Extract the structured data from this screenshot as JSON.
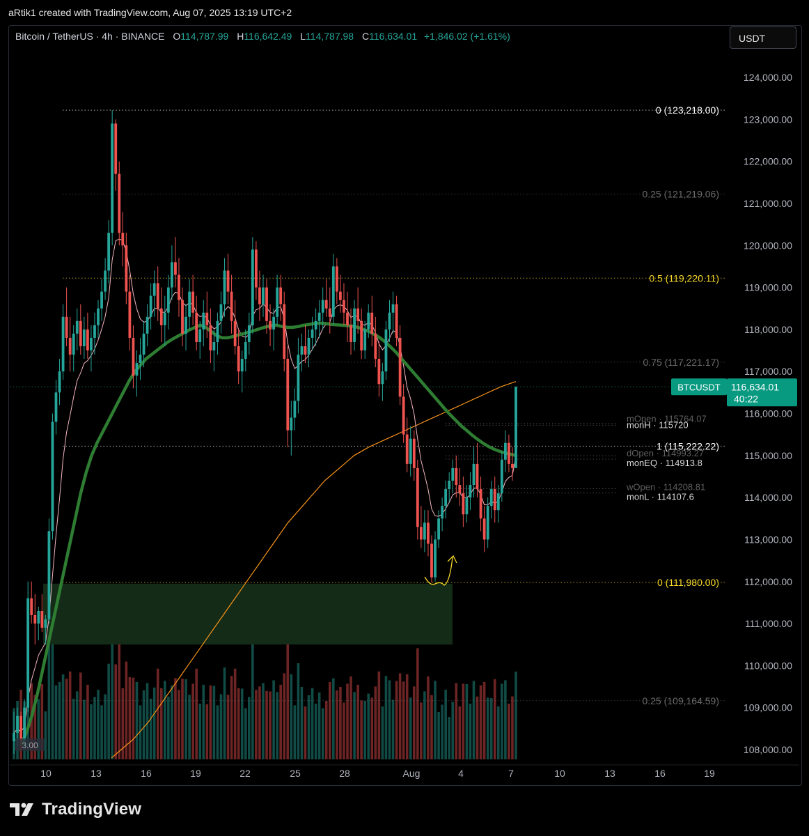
{
  "attribution": "aRtik1 created with TradingView.com, Aug 07, 2025 13:19 UTC+2",
  "header": {
    "symbol": "Bitcoin / TetherUS · 4h · BINANCE",
    "o_label": "O",
    "o_value": "114,787.99",
    "h_label": "H",
    "h_value": "116,642.49",
    "l_label": "L",
    "l_value": "114,787.98",
    "c_label": "C",
    "c_value": "116,634.01",
    "change": "+1,846.02 (+1.61%)"
  },
  "unit_button": "USDT",
  "brand": "TradingView",
  "colors": {
    "up": "#26a69a",
    "down": "#ef5350",
    "accent": "#089981",
    "fib_yellow": "#f5d72a",
    "ema_green": "#2e7d32",
    "ema_orange": "#f7931a"
  },
  "chart_data": {
    "type": "candlestick",
    "title": "Bitcoin / TetherUS · 4h · BINANCE",
    "ylim": [
      107800,
      124800
    ],
    "y_ticks": [
      "124,000.00",
      "123,000.00",
      "122,000.00",
      "121,000.00",
      "120,000.00",
      "119,000.00",
      "118,000.00",
      "117,000.00",
      "116,000.00",
      "115,000.00",
      "114,000.00",
      "113,000.00",
      "112,000.00",
      "111,000.00",
      "110,000.00",
      "109,000.00",
      "108,000.00"
    ],
    "x_ticks": [
      "10",
      "13",
      "16",
      "19",
      "22",
      "25",
      "28",
      "Aug",
      "4",
      "7",
      "10",
      "13",
      "16",
      "19"
    ],
    "last_price": {
      "label": "BTCUSDT",
      "value": "116,634.01",
      "countdown": "40:22"
    },
    "fib_levels": [
      {
        "label": "0 (123,218.00)",
        "value": 123218,
        "color": "#ffffff"
      },
      {
        "label": "0.25 (121,219.06)",
        "value": 121219.06,
        "color": "#6b6b6b"
      },
      {
        "label": "0.5 (119,220.11)",
        "value": 119220.11,
        "color": "#f5d72a"
      },
      {
        "label": "0.75 (117,221.17)",
        "value": 117221.17,
        "color": "#6b6b6b"
      },
      {
        "label": "1 (115,222.22)",
        "value": 115222.22,
        "color": "#ffffff"
      },
      {
        "label": "0 (111,980.00)",
        "value": 111980,
        "color": "#f5d72a"
      },
      {
        "label": "0.25 (109,164.59)",
        "value": 109164.59,
        "color": "#6b6b6b"
      }
    ],
    "levels": [
      {
        "label": "monH · 115720",
        "value": 115720
      },
      {
        "label": "mOpen · 115764.07",
        "value": 115764.07
      },
      {
        "label": "dOpen · 114993.27",
        "value": 114993.27
      },
      {
        "label": "monEQ · 114913.8",
        "value": 114913.8
      },
      {
        "label": "wOpen · 114208.81",
        "value": 114208.81
      },
      {
        "label": "monL · 114107.6",
        "value": 114107.6
      }
    ],
    "demand_zone": {
      "from_price": 110500,
      "to_price": 111950,
      "start_tick": "10",
      "end_date": "Aug 3"
    },
    "volume_label": "3.00",
    "ohlc": [
      [
        108200,
        108900,
        107900,
        108400
      ],
      [
        108400,
        109000,
        108100,
        108800
      ],
      [
        108800,
        108900,
        108000,
        108200
      ],
      [
        108200,
        109200,
        108100,
        109000
      ],
      [
        109000,
        112000,
        108900,
        111600
      ],
      [
        111600,
        112000,
        111000,
        111200
      ],
      [
        111200,
        111700,
        110500,
        111000
      ],
      [
        111000,
        111400,
        110600,
        111300
      ],
      [
        111300,
        111700,
        110800,
        110900
      ],
      [
        110900,
        111200,
        110500,
        111100
      ],
      [
        111100,
        113500,
        111000,
        113200
      ],
      [
        113200,
        116000,
        113000,
        115800
      ],
      [
        115800,
        116800,
        115500,
        116500
      ],
      [
        116500,
        117300,
        116200,
        117000
      ],
      [
        117000,
        118600,
        116800,
        118300
      ],
      [
        118300,
        119000,
        117600,
        117800
      ],
      [
        117800,
        118300,
        117000,
        117400
      ],
      [
        117400,
        118100,
        117000,
        117900
      ],
      [
        117900,
        118500,
        117500,
        118200
      ],
      [
        118200,
        118600,
        117400,
        117600
      ],
      [
        117600,
        118300,
        117300,
        118000
      ],
      [
        118000,
        118400,
        117300,
        117500
      ],
      [
        117500,
        118100,
        117000,
        117800
      ],
      [
        117800,
        118400,
        117400,
        118100
      ],
      [
        118100,
        118700,
        117800,
        118500
      ],
      [
        118500,
        119200,
        118200,
        118900
      ],
      [
        118900,
        119700,
        118700,
        119400
      ],
      [
        119400,
        120600,
        119100,
        120300
      ],
      [
        120300,
        123218,
        120000,
        122900
      ],
      [
        122900,
        123000,
        121300,
        121700
      ],
      [
        121700,
        122000,
        120000,
        120300
      ],
      [
        120300,
        120800,
        119500,
        120000
      ],
      [
        120000,
        120300,
        118600,
        118900
      ],
      [
        118900,
        119300,
        117500,
        117800
      ],
      [
        117800,
        118100,
        116600,
        116900
      ],
      [
        116900,
        117500,
        116400,
        117200
      ],
      [
        117200,
        117800,
        116800,
        117400
      ],
      [
        117400,
        118200,
        117100,
        117900
      ],
      [
        117900,
        118600,
        117600,
        118300
      ],
      [
        118300,
        119100,
        118000,
        118800
      ],
      [
        118800,
        119400,
        118300,
        119100
      ],
      [
        119100,
        119500,
        118200,
        118500
      ],
      [
        118500,
        119000,
        117700,
        118100
      ],
      [
        118100,
        118800,
        117600,
        118400
      ],
      [
        118400,
        119300,
        118000,
        119000
      ],
      [
        119000,
        120000,
        118700,
        119600
      ],
      [
        119600,
        120200,
        119000,
        119300
      ],
      [
        119300,
        119700,
        118300,
        118700
      ],
      [
        118700,
        119000,
        117600,
        117900
      ],
      [
        117900,
        118600,
        117500,
        118300
      ],
      [
        118300,
        119200,
        118000,
        118900
      ],
      [
        118900,
        119300,
        118100,
        118400
      ],
      [
        118400,
        118800,
        117500,
        117700
      ],
      [
        117700,
        118200,
        117300,
        118000
      ],
      [
        118000,
        118700,
        117600,
        118400
      ],
      [
        118400,
        118900,
        117800,
        118100
      ],
      [
        118100,
        118500,
        117200,
        117500
      ],
      [
        117500,
        118000,
        117000,
        117700
      ],
      [
        117700,
        118400,
        117400,
        118200
      ],
      [
        118200,
        118900,
        117900,
        118600
      ],
      [
        118600,
        119700,
        118300,
        119400
      ],
      [
        119400,
        119800,
        118600,
        118900
      ],
      [
        118900,
        119300,
        117900,
        118200
      ],
      [
        118200,
        118700,
        117400,
        117600
      ],
      [
        117600,
        118000,
        116700,
        117000
      ],
      [
        117000,
        117500,
        116500,
        117300
      ],
      [
        117300,
        118000,
        117000,
        117700
      ],
      [
        117700,
        118400,
        117400,
        118100
      ],
      [
        118100,
        120200,
        117900,
        119900
      ],
      [
        119900,
        120100,
        118700,
        119000
      ],
      [
        119000,
        119400,
        118200,
        118600
      ],
      [
        118600,
        119300,
        118300,
        119000
      ],
      [
        119000,
        119200,
        117900,
        118200
      ],
      [
        118200,
        118600,
        117600,
        118000
      ],
      [
        118000,
        118500,
        117500,
        118300
      ],
      [
        118300,
        119300,
        118100,
        119000
      ],
      [
        119000,
        119300,
        118200,
        118600
      ],
      [
        118600,
        118900,
        117000,
        117300
      ],
      [
        117300,
        117600,
        115200,
        115600
      ],
      [
        115600,
        116300,
        115000,
        115900
      ],
      [
        115900,
        116600,
        115600,
        116300
      ],
      [
        116300,
        117800,
        116000,
        117400
      ],
      [
        117400,
        117900,
        117000,
        117600
      ],
      [
        117600,
        118100,
        117200,
        117400
      ],
      [
        117400,
        118000,
        117100,
        117800
      ],
      [
        117800,
        118300,
        117500,
        118000
      ],
      [
        118000,
        118500,
        117600,
        118200
      ],
      [
        118200,
        118700,
        117800,
        118400
      ],
      [
        118400,
        119000,
        118000,
        118700
      ],
      [
        118700,
        119200,
        118300,
        118500
      ],
      [
        118500,
        119000,
        117900,
        118300
      ],
      [
        118300,
        119800,
        118100,
        119500
      ],
      [
        119500,
        119700,
        118600,
        118900
      ],
      [
        118900,
        119300,
        118400,
        118700
      ],
      [
        118700,
        119100,
        118100,
        118400
      ],
      [
        118400,
        118900,
        117700,
        118100
      ],
      [
        118100,
        118500,
        117400,
        117700
      ],
      [
        117700,
        118700,
        117500,
        118500
      ],
      [
        118500,
        119000,
        117900,
        118200
      ],
      [
        118200,
        118500,
        117300,
        117500
      ],
      [
        117500,
        118200,
        117300,
        118000
      ],
      [
        118000,
        118600,
        117800,
        118400
      ],
      [
        118400,
        118800,
        117600,
        117900
      ],
      [
        117900,
        118300,
        117100,
        117300
      ],
      [
        117300,
        117700,
        116400,
        116700
      ],
      [
        116700,
        117200,
        116300,
        117000
      ],
      [
        117000,
        118200,
        116800,
        118000
      ],
      [
        118000,
        118700,
        117700,
        118400
      ],
      [
        118400,
        118900,
        117900,
        118600
      ],
      [
        118600,
        118800,
        117600,
        117800
      ],
      [
        117800,
        118100,
        116200,
        116400
      ],
      [
        116400,
        116700,
        115300,
        115500
      ],
      [
        115500,
        115900,
        114600,
        114800
      ],
      [
        114800,
        115700,
        114500,
        115400
      ],
      [
        115400,
        115600,
        114400,
        114700
      ],
      [
        114700,
        114900,
        113000,
        113300
      ],
      [
        113300,
        113800,
        112800,
        113000
      ],
      [
        113000,
        113700,
        112700,
        113400
      ],
      [
        113400,
        113700,
        112600,
        112900
      ],
      [
        112900,
        113100,
        111980,
        112100
      ],
      [
        112100,
        113200,
        112000,
        113000
      ],
      [
        113000,
        113700,
        112800,
        113500
      ],
      [
        113500,
        114000,
        113200,
        113800
      ],
      [
        113800,
        114400,
        113500,
        114200
      ],
      [
        114200,
        114600,
        113900,
        114400
      ],
      [
        114400,
        114900,
        114100,
        114700
      ],
      [
        114700,
        115000,
        114000,
        114300
      ],
      [
        114300,
        114700,
        113800,
        114100
      ],
      [
        114100,
        114500,
        113300,
        113600
      ],
      [
        113600,
        114300,
        113400,
        114000
      ],
      [
        114000,
        114600,
        113700,
        114300
      ],
      [
        114300,
        115200,
        114000,
        114800
      ],
      [
        114800,
        115300,
        114000,
        114200
      ],
      [
        114200,
        114500,
        113200,
        113500
      ],
      [
        113500,
        113800,
        112700,
        113000
      ],
      [
        113000,
        114000,
        112800,
        113800
      ],
      [
        113800,
        114400,
        113500,
        114200
      ],
      [
        114200,
        114500,
        113400,
        113700
      ],
      [
        113700,
        114300,
        113400,
        114100
      ],
      [
        114100,
        115100,
        113900,
        114900
      ],
      [
        114900,
        115600,
        114600,
        115300
      ],
      [
        115300,
        115500,
        114600,
        114800
      ],
      [
        114800,
        115200,
        114400,
        114700
      ],
      [
        114700,
        116642,
        114700,
        116634
      ]
    ],
    "ema_green": [
      108100,
      108400,
      108800,
      109300,
      109900,
      110500,
      111100,
      111700,
      112300,
      112900,
      113500,
      114100,
      114600,
      115000,
      115300,
      115550,
      115800,
      116050,
      116300,
      116550,
      116800,
      117000,
      117150,
      117300,
      117400,
      117500,
      117600,
      117700,
      117780,
      117850,
      117920,
      117990,
      118050,
      118100,
      118050,
      117950,
      117850,
      117800,
      117800,
      117830,
      117870,
      117900,
      117940,
      117980,
      118020,
      118060,
      118090,
      118100,
      118070,
      118050,
      118050,
      118070,
      118100,
      118120,
      118140,
      118150,
      118140,
      118120,
      118110,
      118100,
      118090,
      118080,
      118050,
      118000,
      117950,
      117880,
      117800,
      117700,
      117580,
      117450,
      117300,
      117150,
      117000,
      116850,
      116700,
      116550,
      116400,
      116250,
      116100,
      115960,
      115830,
      115700,
      115590,
      115480,
      115380,
      115290,
      115210,
      115150,
      115100,
      115060,
      115030,
      115000
    ],
    "ema_orange": [
      107800,
      107950,
      108100,
      108250,
      108450,
      108650,
      108900,
      109150,
      109400,
      109650,
      109900,
      110150,
      110400,
      110650,
      110900,
      111150,
      111400,
      111650,
      111900,
      112150,
      112400,
      112650,
      112900,
      113150,
      113400,
      113600,
      113800,
      114000,
      114200,
      114400,
      114550,
      114700,
      114850,
      115000,
      115100,
      115200,
      115280,
      115360,
      115440,
      115520,
      115600,
      115680,
      115760,
      115840,
      115920,
      116000,
      116080,
      116160,
      116240,
      116320,
      116400,
      116480,
      116560,
      116640,
      116700,
      116760
    ]
  }
}
